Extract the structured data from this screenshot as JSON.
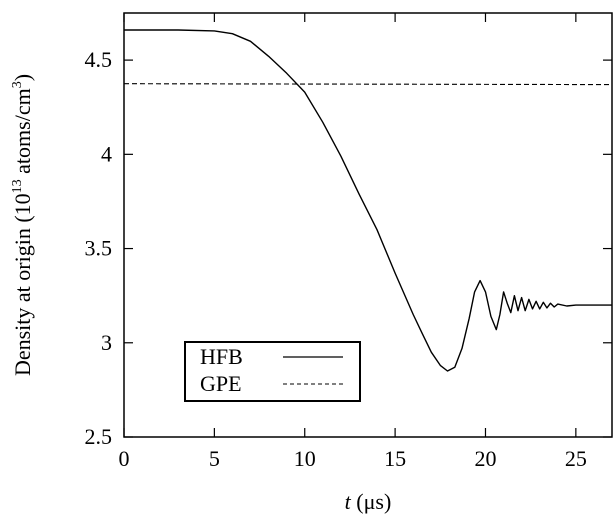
{
  "chart_data": {
    "type": "line",
    "xlabel": {
      "var": "t",
      "unit": " (μs)"
    },
    "ylabel": {
      "main": "Density at origin (10",
      "exp1": "13",
      "mid": " atoms/cm",
      "exp2": "3",
      "end": ")"
    },
    "xlim": [
      0,
      27
    ],
    "ylim": [
      2.5,
      4.75
    ],
    "xticks": [
      0,
      5,
      10,
      15,
      20,
      25
    ],
    "yticks": [
      2.5,
      3,
      3.5,
      4,
      4.5
    ],
    "xtick_labels": [
      "0",
      "5",
      "10",
      "15",
      "20",
      "25"
    ],
    "ytick_labels": [
      "2.5",
      "3",
      "3.5",
      "4",
      "4.5"
    ],
    "legend_position": "bottom-left",
    "series": [
      {
        "name": "HFB",
        "style": "solid",
        "x": [
          0,
          3,
          5,
          6,
          7,
          8,
          9,
          10,
          11,
          12,
          13,
          14,
          15,
          16,
          16.5,
          17,
          17.5,
          17.9,
          18.3,
          18.7,
          19.1,
          19.4,
          19.7,
          20.0,
          20.3,
          20.6,
          20.8,
          21.0,
          21.2,
          21.4,
          21.6,
          21.8,
          22.0,
          22.2,
          22.4,
          22.6,
          22.8,
          23.0,
          23.2,
          23.4,
          23.6,
          23.8,
          24.0,
          24.5,
          25,
          26,
          27
        ],
        "y": [
          4.66,
          4.66,
          4.655,
          4.64,
          4.6,
          4.52,
          4.43,
          4.33,
          4.17,
          3.99,
          3.79,
          3.6,
          3.37,
          3.15,
          3.05,
          2.95,
          2.88,
          2.85,
          2.87,
          2.97,
          3.13,
          3.27,
          3.33,
          3.27,
          3.14,
          3.07,
          3.15,
          3.27,
          3.21,
          3.16,
          3.25,
          3.17,
          3.24,
          3.17,
          3.23,
          3.18,
          3.22,
          3.18,
          3.215,
          3.185,
          3.21,
          3.19,
          3.205,
          3.195,
          3.2,
          3.2,
          3.2
        ]
      },
      {
        "name": "GPE",
        "style": "dashed",
        "x": [
          0,
          27
        ],
        "y": [
          4.375,
          4.37
        ]
      }
    ]
  }
}
